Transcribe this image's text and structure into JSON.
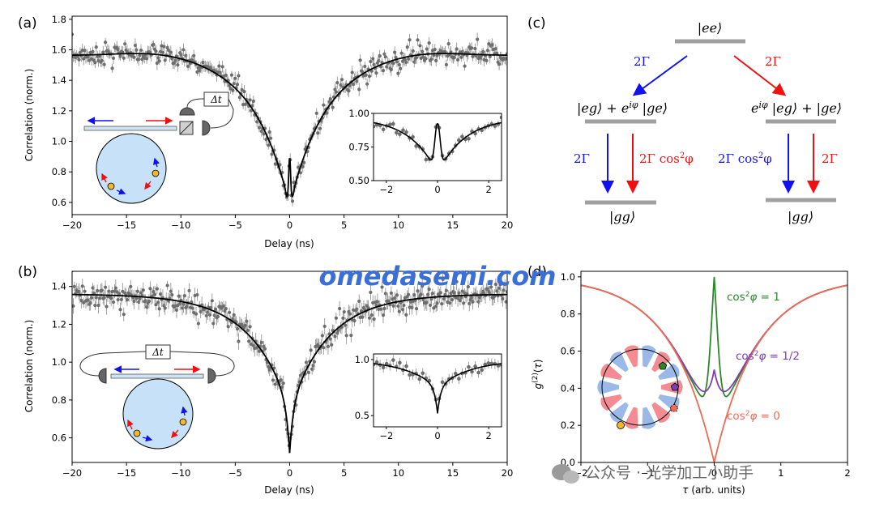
{
  "panels": {
    "a": {
      "letter": "(a)"
    },
    "b": {
      "letter": "(b)"
    },
    "c": {
      "letter": "(c)"
    },
    "d": {
      "letter": "(d)"
    }
  },
  "watermark": {
    "text": "omedasemi.com",
    "footer": "公众号 · 光学加工小助手"
  },
  "inset_labels": {
    "delay_box": "Δt"
  },
  "level_diagram": {
    "top_state": "|ee⟩",
    "left_mid_state": "|eg⟩ + e^{iφ} |ge⟩",
    "right_mid_state": "e^{iφ} |eg⟩ + |ge⟩",
    "bottom_state": "|gg⟩",
    "rate_top_left": "2Γ",
    "rate_top_right": "2Γ",
    "rate_left_blue": "2Γ",
    "rate_left_red": "2Γ cos²φ",
    "rate_right_blue": "2Γ cos²φ",
    "rate_right_red": "2Γ",
    "colors": {
      "blue": "#1010f0",
      "red": "#f01010",
      "level": "#a0a0a0"
    }
  },
  "chart_data": [
    {
      "id": "a",
      "type": "scatter",
      "title": "",
      "xlabel": "Delay (ns)",
      "ylabel": "Correlation (norm.)",
      "xlim": [
        -20,
        20
      ],
      "ylim": [
        0.52,
        1.82
      ],
      "xticks": [
        -20,
        -15,
        -10,
        -5,
        0,
        5,
        10,
        15,
        20
      ],
      "xtick_labels": [
        "−20",
        "−15",
        "−10",
        "−5",
        "0",
        "5",
        "10",
        "15",
        "20"
      ],
      "yticks": [
        0.6,
        0.8,
        1.0,
        1.2,
        1.4,
        1.6,
        1.8
      ],
      "ytick_labels": [
        "0.6",
        "0.8",
        "1.0",
        "1.2",
        "1.4",
        "1.6",
        "1.8"
      ],
      "model": {
        "plateau": 1.565,
        "dip": 0.58,
        "width_ns": 5.2,
        "peak_height": 0.87,
        "peak_width_ns": 0.12,
        "hump_ns": 13,
        "hump_amp": 0.0
      },
      "series": [
        {
          "style": "data points with error bars, gray"
        },
        {
          "style": "fit, black"
        }
      ],
      "inset": {
        "xlim": [
          -2.5,
          2.5
        ],
        "ylim": [
          0.5,
          1.0
        ],
        "xticks": [
          -2,
          0,
          2
        ],
        "xtick_labels": [
          "−2",
          "0",
          "2"
        ],
        "yticks": [
          0.5,
          0.75,
          1.0
        ],
        "ytick_labels": [
          "0.50",
          "0.75",
          "1.00"
        ]
      }
    },
    {
      "id": "b",
      "type": "scatter",
      "title": "",
      "xlabel": "Delay (ns)",
      "ylabel": "Correlation (norm.)",
      "xlim": [
        -20,
        20
      ],
      "ylim": [
        0.47,
        1.48
      ],
      "xticks": [
        -20,
        -15,
        -10,
        -5,
        0,
        5,
        10,
        15,
        20
      ],
      "xtick_labels": [
        "−20",
        "−15",
        "−10",
        "−5",
        "0",
        "5",
        "10",
        "15",
        "20"
      ],
      "yticks": [
        0.6,
        0.8,
        1.0,
        1.2,
        1.4
      ],
      "ytick_labels": [
        "0.6",
        "0.8",
        "1.0",
        "1.2",
        "1.4"
      ],
      "model": {
        "plateau": 1.36,
        "dip": 0.52,
        "width_ns": 5.5
      },
      "series": [
        {
          "style": "data points with error bars, gray"
        },
        {
          "style": "fit, black"
        }
      ],
      "inset": {
        "xlim": [
          -2.5,
          2.5
        ],
        "ylim": [
          0.4,
          1.05
        ],
        "xticks": [
          -2,
          0,
          2
        ],
        "xtick_labels": [
          "−2",
          "0",
          "2"
        ],
        "yticks": [
          0.5,
          1.0
        ],
        "ytick_labels": [
          "0.5",
          "1.0"
        ]
      }
    },
    {
      "id": "d",
      "type": "line",
      "title": "",
      "xlabel": "τ (arb. units)",
      "ylabel": "g(2)(τ)",
      "xlim": [
        -2,
        2
      ],
      "ylim": [
        0,
        1.03
      ],
      "xticks": [
        -2,
        -1,
        0,
        1,
        2
      ],
      "xtick_labels": [
        "−2",
        "−1",
        "0",
        "1",
        "2"
      ],
      "yticks": [
        0.0,
        0.2,
        0.4,
        0.6,
        0.8,
        1.0
      ],
      "ytick_labels": [
        "0.0",
        "0.2",
        "0.4",
        "0.6",
        "0.8",
        "1.0"
      ],
      "series": [
        {
          "name": "cos²φ = 1",
          "cos2phi": 1,
          "color": "#2a8a2a"
        },
        {
          "name": "cos²φ = 1/2",
          "cos2phi": 0.5,
          "color": "#7e3fb0"
        },
        {
          "name": "cos²φ = 0",
          "cos2phi": 0,
          "color": "#f06a55"
        }
      ]
    }
  ]
}
